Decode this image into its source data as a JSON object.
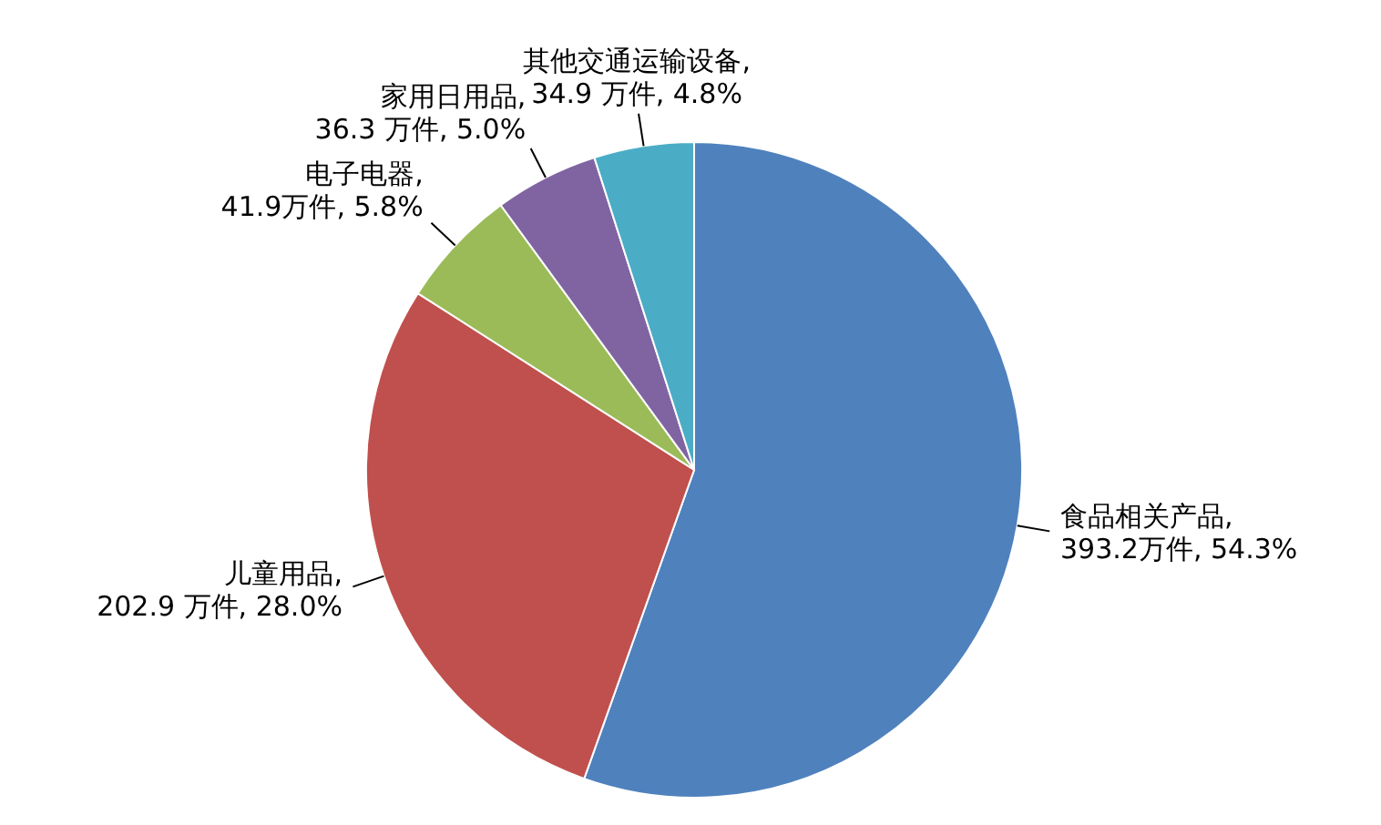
{
  "chart_data": {
    "type": "pie",
    "categories": [
      "食品相关产品",
      "儿童用品",
      "电子电器",
      "家用日用品",
      "其他交通运输设备"
    ],
    "values": [
      393.2,
      202.9,
      41.9,
      36.3,
      34.9
    ],
    "value_labels": [
      ", 393.2万件, 54.3%",
      ", 202.9 万件, 28.0%",
      ", 41.9万件, 5.8%",
      ", 36.3 万件, 5.0%",
      ", 34.9 万件, 4.8%"
    ],
    "colors": [
      "#4f81bd",
      "#c0504d",
      "#9bbb59",
      "#8064a2",
      "#4bacc6"
    ]
  }
}
